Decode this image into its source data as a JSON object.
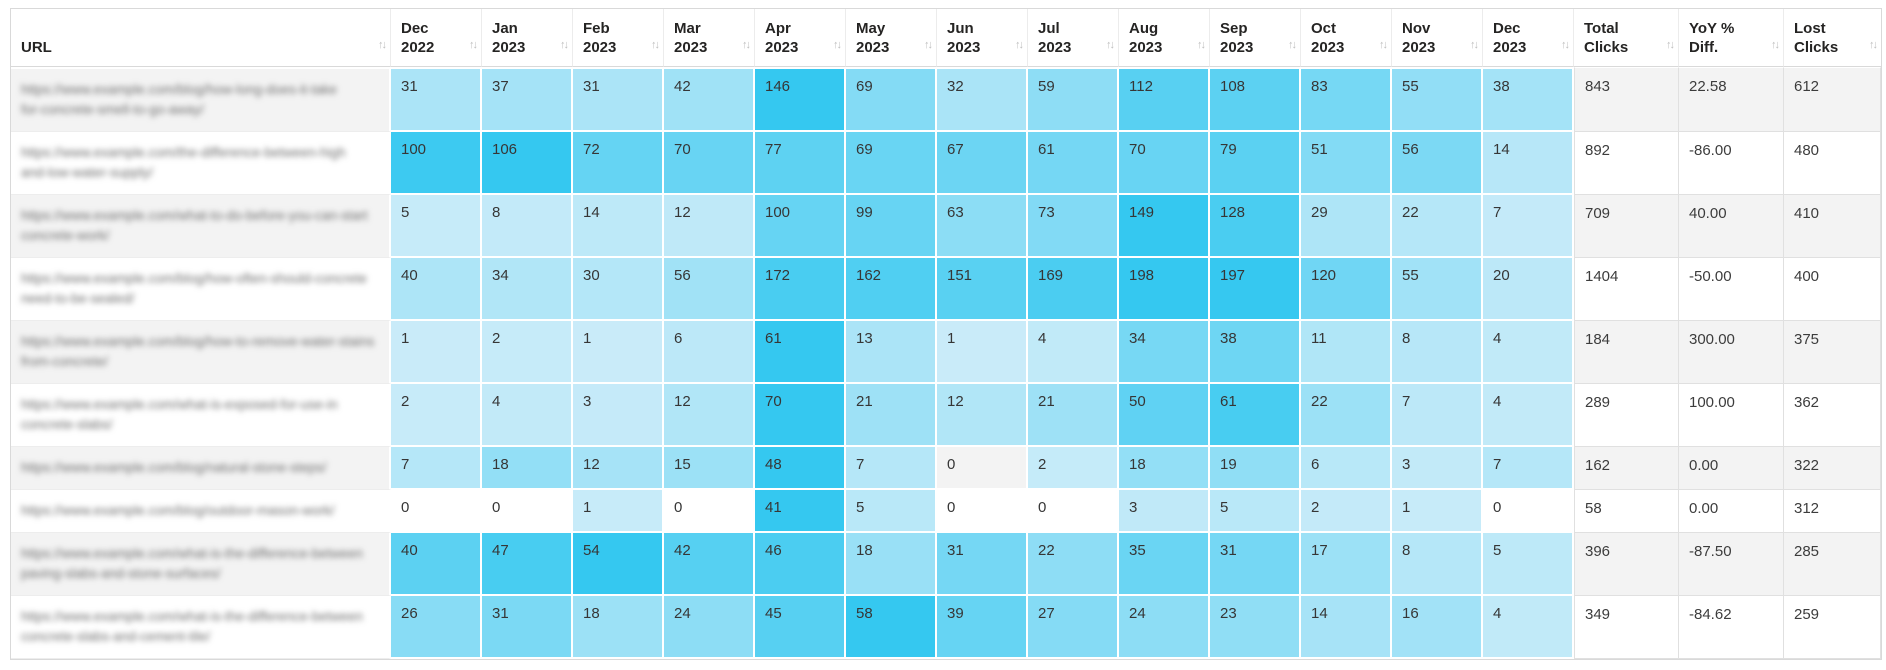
{
  "colors": {
    "heat_min": "#cbecf9",
    "heat_max": "#35c8f0",
    "row_stripe": "#f3f3f3",
    "row_plain": "#ffffff",
    "table_border": "#d9d9d9",
    "grid_line": "#e0e0e0",
    "header_text": "#252423",
    "value_text": "#363636",
    "sort_icon": "#bfbfbf"
  },
  "sort_icon_glyph": "↑↓",
  "table": {
    "columns": [
      {
        "id": "url",
        "lines": [
          "URL"
        ],
        "kind": "url"
      },
      {
        "id": "dec-2022",
        "lines": [
          "Dec",
          "2022"
        ],
        "kind": "month"
      },
      {
        "id": "jan-2023",
        "lines": [
          "Jan",
          "2023"
        ],
        "kind": "month"
      },
      {
        "id": "feb-2023",
        "lines": [
          "Feb",
          "2023"
        ],
        "kind": "month"
      },
      {
        "id": "mar-2023",
        "lines": [
          "Mar",
          "2023"
        ],
        "kind": "month"
      },
      {
        "id": "apr-2023",
        "lines": [
          "Apr",
          "2023"
        ],
        "kind": "month"
      },
      {
        "id": "may-2023",
        "lines": [
          "May",
          "2023"
        ],
        "kind": "month"
      },
      {
        "id": "jun-2023",
        "lines": [
          "Jun",
          "2023"
        ],
        "kind": "month"
      },
      {
        "id": "jul-2023",
        "lines": [
          "Jul",
          "2023"
        ],
        "kind": "month"
      },
      {
        "id": "aug-2023",
        "lines": [
          "Aug",
          "2023"
        ],
        "kind": "month"
      },
      {
        "id": "sep-2023",
        "lines": [
          "Sep",
          "2023"
        ],
        "kind": "month"
      },
      {
        "id": "oct-2023",
        "lines": [
          "Oct",
          "2023"
        ],
        "kind": "month"
      },
      {
        "id": "nov-2023",
        "lines": [
          "Nov",
          "2023"
        ],
        "kind": "month"
      },
      {
        "id": "dec-2023",
        "lines": [
          "Dec",
          "2023"
        ],
        "kind": "month"
      },
      {
        "id": "total-clicks",
        "lines": [
          "Total",
          "Clicks"
        ],
        "kind": "metric"
      },
      {
        "id": "yoy-pct-diff",
        "lines": [
          "YoY %",
          "Diff."
        ],
        "kind": "metric"
      },
      {
        "id": "lost-clicks",
        "lines": [
          "Lost",
          "Clicks"
        ],
        "kind": "metric"
      }
    ],
    "rows": [
      {
        "url_blurred_lines": [
          "https://www.example.com/blog/how-long-does-it-take",
          "for-concrete-smell-to-go-away/"
        ],
        "months": [
          31,
          37,
          31,
          42,
          146,
          69,
          32,
          59,
          112,
          108,
          83,
          55,
          38
        ],
        "total_clicks": 843,
        "yoy_pct_diff": "22.58",
        "lost_clicks": 612
      },
      {
        "url_blurred_lines": [
          "https://www.example.com/the-difference-between-high",
          "and-low-water-supply/"
        ],
        "months": [
          100,
          106,
          72,
          70,
          77,
          69,
          67,
          61,
          70,
          79,
          51,
          56,
          14
        ],
        "total_clicks": 892,
        "yoy_pct_diff": "-86.00",
        "lost_clicks": 480
      },
      {
        "url_blurred_lines": [
          "https://www.example.com/what-to-do-before-you-can-start",
          "concrete-work/"
        ],
        "months": [
          5,
          8,
          14,
          12,
          100,
          99,
          63,
          73,
          149,
          128,
          29,
          22,
          7
        ],
        "total_clicks": 709,
        "yoy_pct_diff": "40.00",
        "lost_clicks": 410
      },
      {
        "url_blurred_lines": [
          "https://www.example.com/blog/how-often-should-concrete",
          "need-to-be-sealed/"
        ],
        "months": [
          40,
          34,
          30,
          56,
          172,
          162,
          151,
          169,
          198,
          197,
          120,
          55,
          20
        ],
        "total_clicks": 1404,
        "yoy_pct_diff": "-50.00",
        "lost_clicks": 400
      },
      {
        "url_blurred_lines": [
          "https://www.example.com/blog/how-to-remove-water-stains",
          "from-concrete/"
        ],
        "months": [
          1,
          2,
          1,
          6,
          61,
          13,
          1,
          4,
          34,
          38,
          11,
          8,
          4
        ],
        "total_clicks": 184,
        "yoy_pct_diff": "300.00",
        "lost_clicks": 375
      },
      {
        "url_blurred_lines": [
          "https://www.example.com/what-is-exposed-for-use-in",
          "concrete-slabs/"
        ],
        "months": [
          2,
          4,
          3,
          12,
          70,
          21,
          12,
          21,
          50,
          61,
          22,
          7,
          4
        ],
        "total_clicks": 289,
        "yoy_pct_diff": "100.00",
        "lost_clicks": 362
      },
      {
        "url_blurred_lines": [
          "https://www.example.com/blog/natural-stone-steps/"
        ],
        "months": [
          7,
          18,
          12,
          15,
          48,
          7,
          0,
          2,
          18,
          19,
          6,
          3,
          7
        ],
        "total_clicks": 162,
        "yoy_pct_diff": "0.00",
        "lost_clicks": 322
      },
      {
        "url_blurred_lines": [
          "https://www.example.com/blog/outdoor-mason-work/"
        ],
        "months": [
          0,
          0,
          1,
          0,
          41,
          5,
          0,
          0,
          3,
          5,
          2,
          1,
          0
        ],
        "total_clicks": 58,
        "yoy_pct_diff": "0.00",
        "lost_clicks": 312
      },
      {
        "url_blurred_lines": [
          "https://www.example.com/what-is-the-difference-between",
          "paving-slabs-and-stone-surfaces/"
        ],
        "months": [
          40,
          47,
          54,
          42,
          46,
          18,
          31,
          22,
          35,
          31,
          17,
          8,
          5
        ],
        "total_clicks": 396,
        "yoy_pct_diff": "-87.50",
        "lost_clicks": 285
      },
      {
        "url_blurred_lines": [
          "https://www.example.com/what-is-the-difference-between",
          "concrete-slabs-and-cement-tile/"
        ],
        "months": [
          26,
          31,
          18,
          24,
          45,
          58,
          39,
          27,
          24,
          23,
          14,
          16,
          4
        ],
        "total_clicks": 349,
        "yoy_pct_diff": "-84.62",
        "lost_clicks": 259
      }
    ]
  }
}
